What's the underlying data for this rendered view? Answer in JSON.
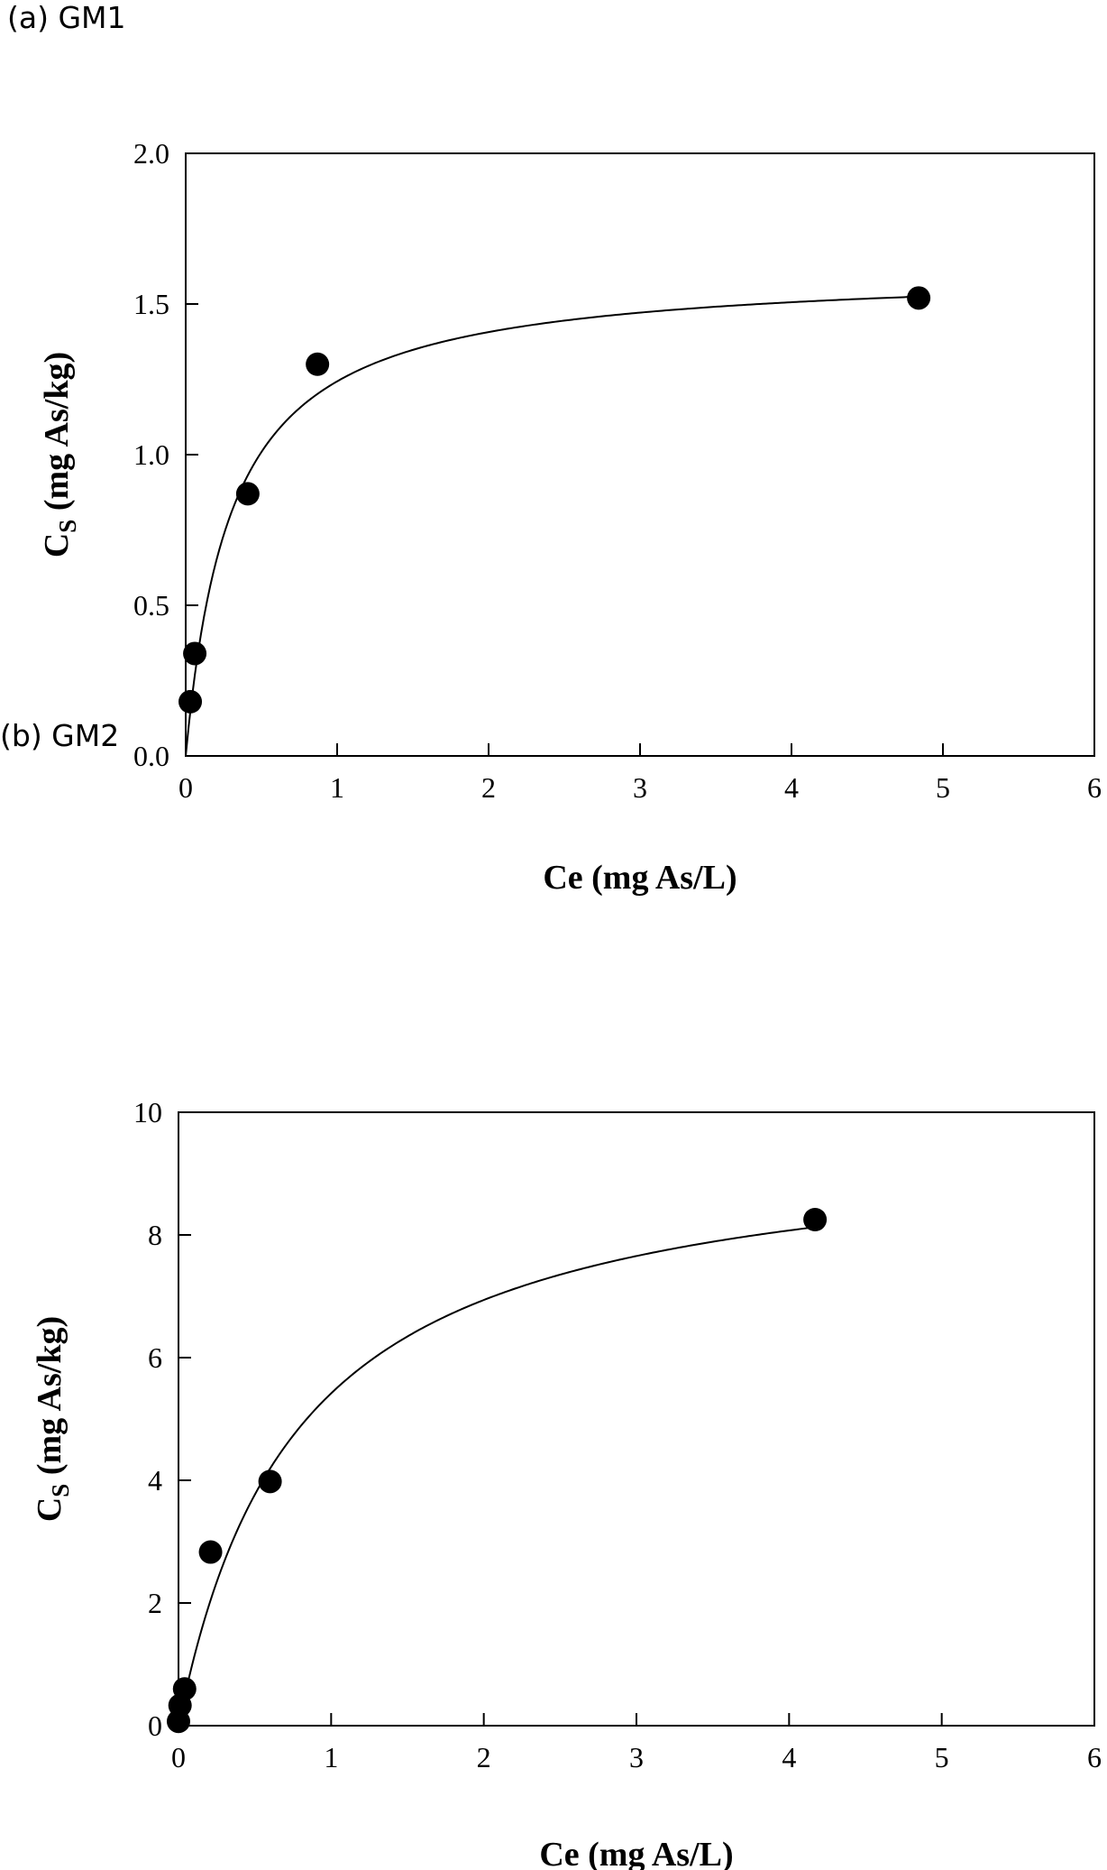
{
  "chart_data": [
    {
      "type": "scatter",
      "title": "(a) GM1",
      "xlabel": "Ce (mg As/L)",
      "ylabel_main": "C",
      "ylabel_sub": "S",
      "ylabel_rest": " (mg As/kg)",
      "xlim": [
        0,
        6
      ],
      "ylim": [
        0,
        2.0
      ],
      "x_ticks": [
        0,
        1,
        2,
        3,
        4,
        5,
        6
      ],
      "y_ticks": [
        "0.0",
        "0.5",
        "1.0",
        "1.5",
        "2.0"
      ],
      "grid": false,
      "points": [
        {
          "x": 0.03,
          "y": 0.18
        },
        {
          "x": 0.06,
          "y": 0.34
        },
        {
          "x": 0.41,
          "y": 0.87
        },
        {
          "x": 0.87,
          "y": 1.3
        },
        {
          "x": 4.84,
          "y": 1.52
        }
      ],
      "fit_curve": {
        "model": "langmuir",
        "qmax": 1.62,
        "K": 3.3,
        "x_range": [
          0,
          4.84
        ]
      }
    },
    {
      "type": "scatter",
      "title": "(b) GM2",
      "xlabel": "Ce (mg As/L)",
      "ylabel_main": "C",
      "ylabel_sub": "S",
      "ylabel_rest": " (mg As/kg)",
      "xlim": [
        0,
        6
      ],
      "ylim": [
        0,
        10
      ],
      "x_ticks": [
        0,
        1,
        2,
        3,
        4,
        5,
        6
      ],
      "y_ticks": [
        "0",
        "2",
        "4",
        "6",
        "8",
        "10"
      ],
      "grid": false,
      "points": [
        {
          "x": 0.0,
          "y": 0.07
        },
        {
          "x": 0.01,
          "y": 0.33
        },
        {
          "x": 0.04,
          "y": 0.6
        },
        {
          "x": 0.21,
          "y": 2.83
        },
        {
          "x": 0.6,
          "y": 3.98
        },
        {
          "x": 4.17,
          "y": 8.25
        }
      ],
      "fit_curve": {
        "model": "langmuir",
        "qmax": 9.65,
        "K": 1.28,
        "x_range": [
          0,
          4.17
        ]
      }
    }
  ]
}
